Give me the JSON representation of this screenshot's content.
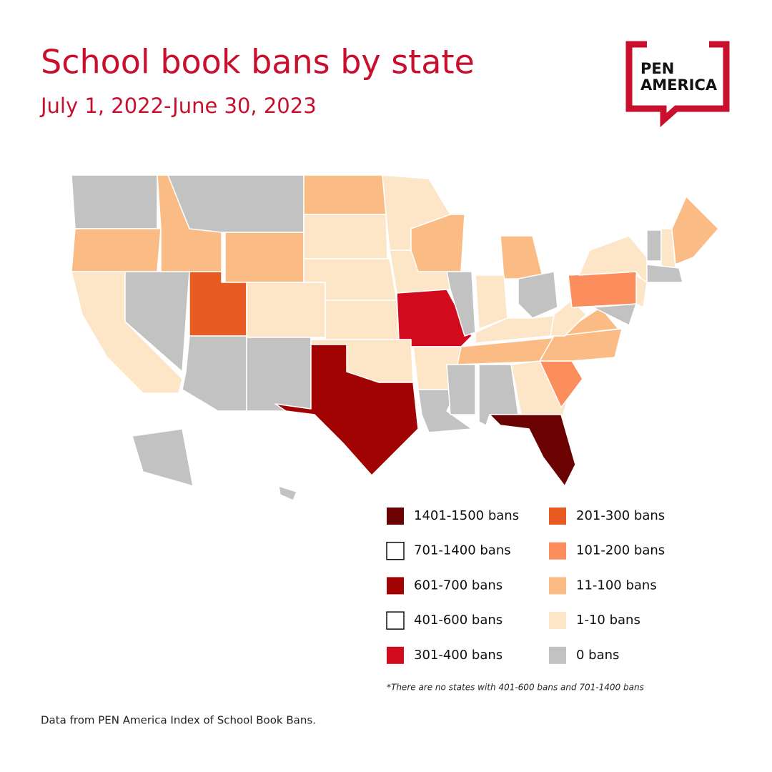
{
  "header": {
    "title": "School book bans by state",
    "subtitle": "July 1, 2022-June 30, 2023",
    "logo": [
      "PEN",
      "AMERICA"
    ]
  },
  "legend": [
    {
      "label": "1401-1500 bans",
      "color": "#6b0202"
    },
    {
      "label": "701-1400 bans",
      "color": "#ffffff"
    },
    {
      "label": "601-700 bans",
      "color": "#a10202"
    },
    {
      "label": "401-600 bans",
      "color": "#ffffff"
    },
    {
      "label": "301-400 bans",
      "color": "#d20a1e"
    },
    {
      "label": "201-300 bans",
      "color": "#e85b22"
    },
    {
      "label": "101-200 bans",
      "color": "#fc8d5c"
    },
    {
      "label": "11-100 bans",
      "color": "#fbbb85"
    },
    {
      "label": "1-10 bans",
      "color": "#fde6c8"
    },
    {
      "label": "0 bans",
      "color": "#c2c2c2"
    }
  ],
  "footnote": "*There are no states with 401-600 bans and 701-1400 bans",
  "source": "Data from PEN America Index of School Book Bans."
}
